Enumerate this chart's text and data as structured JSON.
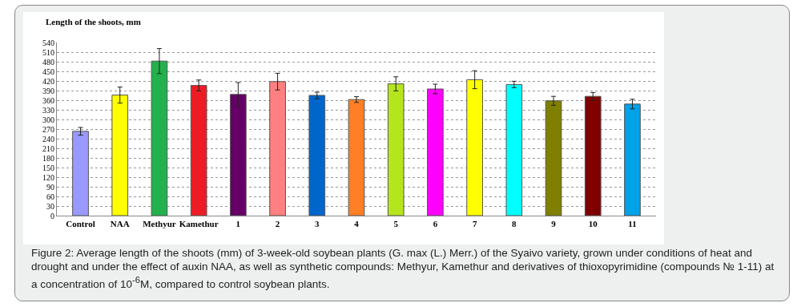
{
  "chart_data": {
    "type": "bar",
    "title": "Length of the shoots, mm",
    "categories": [
      "Control",
      "NAA",
      "Methyur",
      "Kamethur",
      "1",
      "2",
      "3",
      "4",
      "5",
      "6",
      "7",
      "8",
      "9",
      "10",
      "11"
    ],
    "values": [
      263,
      376,
      482,
      406,
      378,
      418,
      375,
      362,
      411,
      395,
      424,
      409,
      358,
      372,
      348
    ],
    "errors": [
      12,
      25,
      39,
      17,
      37,
      26,
      10,
      9,
      22,
      15,
      28,
      10,
      14,
      12,
      15
    ],
    "colors": [
      "#9999ff",
      "#ffff00",
      "#22b14c",
      "#ed1c24",
      "#660066",
      "#ff8080",
      "#0066cc",
      "#ff7f27",
      "#b5e61d",
      "#ff00ff",
      "#ffff00",
      "#00ffff",
      "#808000",
      "#800000",
      "#00a2e8"
    ],
    "ylim": [
      0,
      540
    ],
    "yticks": [
      0,
      30,
      60,
      90,
      120,
      150,
      180,
      210,
      240,
      270,
      300,
      330,
      360,
      390,
      420,
      450,
      480,
      510,
      540
    ],
    "grid": "y",
    "annotations": [
      "Figure 2: Average length of the shoots (mm) of 3-week-old soybean plants (G. max (L.) Merr.) of the Syaivo variety, grown under conditions of heat and drought and under the effect of auxin NAA, as well as synthetic compounds: Methyur, Kamethur and derivatives of thioxopyrimidine (compounds № 1-11) at a concentration of 10$^{-6}$M, compared to control soybean plants."
    ]
  }
}
